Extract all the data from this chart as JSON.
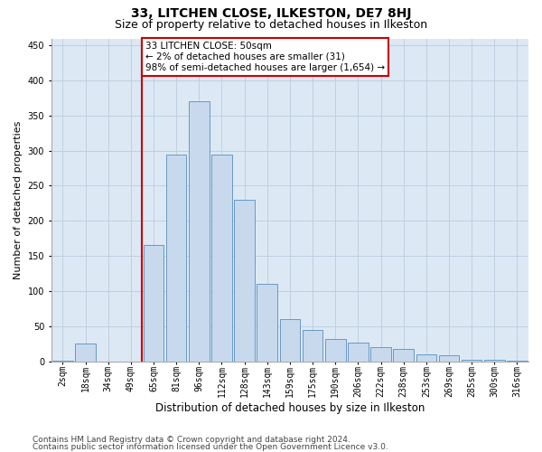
{
  "title": "33, LITCHEN CLOSE, ILKESTON, DE7 8HJ",
  "subtitle": "Size of property relative to detached houses in Ilkeston",
  "xlabel": "Distribution of detached houses by size in Ilkeston",
  "ylabel": "Number of detached properties",
  "categories": [
    "2sqm",
    "18sqm",
    "34sqm",
    "49sqm",
    "65sqm",
    "81sqm",
    "96sqm",
    "112sqm",
    "128sqm",
    "143sqm",
    "159sqm",
    "175sqm",
    "190sqm",
    "206sqm",
    "222sqm",
    "238sqm",
    "253sqm",
    "269sqm",
    "285sqm",
    "300sqm",
    "316sqm"
  ],
  "values": [
    1,
    25,
    0,
    0,
    165,
    295,
    370,
    295,
    230,
    110,
    60,
    45,
    32,
    27,
    20,
    18,
    10,
    8,
    2,
    2,
    1
  ],
  "bar_color": "#c8d9ed",
  "bar_edge_color": "#6899c4",
  "vline_index": 4,
  "vline_color": "#cc0000",
  "annotation_text": "33 LITCHEN CLOSE: 50sqm\n← 2% of detached houses are smaller (31)\n98% of semi-detached houses are larger (1,654) →",
  "annotation_box_facecolor": "#ffffff",
  "annotation_box_edgecolor": "#cc0000",
  "ylim_max": 460,
  "yticks": [
    0,
    50,
    100,
    150,
    200,
    250,
    300,
    350,
    400,
    450
  ],
  "footer1": "Contains HM Land Registry data © Crown copyright and database right 2024.",
  "footer2": "Contains public sector information licensed under the Open Government Licence v3.0.",
  "bg_color": "#ffffff",
  "plot_bg_color": "#dce9f5",
  "grid_color": "#c0cfe0",
  "title_fontsize": 10,
  "subtitle_fontsize": 9,
  "annot_fontsize": 7.5,
  "ylabel_fontsize": 8,
  "xlabel_fontsize": 8.5,
  "tick_fontsize": 7,
  "footer_fontsize": 6.5
}
